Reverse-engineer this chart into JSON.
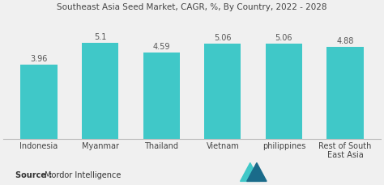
{
  "title": "Southeast Asia Seed Market, CAGR, %, By Country, 2022 - 2028",
  "categories": [
    "Indonesia",
    "Myanmar",
    "Thailand",
    "Vietnam",
    "philippines",
    "Rest of South\nEast Asia"
  ],
  "values": [
    3.96,
    5.1,
    4.59,
    5.06,
    5.06,
    4.88
  ],
  "bar_color": "#40C8C8",
  "background_color": "#f0f0f0",
  "title_fontsize": 7.5,
  "label_fontsize": 7,
  "value_fontsize": 7,
  "source_text": "Source : Mordor Intelligence",
  "source_bold": "Source :",
  "ylim": [
    0,
    6.5
  ],
  "bar_width": 0.6,
  "logo_color1": "#1a6b8a",
  "logo_color2": "#40C8C8"
}
